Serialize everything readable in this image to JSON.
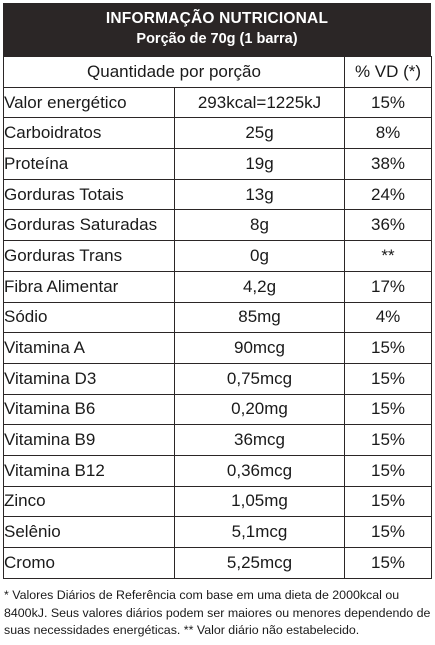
{
  "header": {
    "title": "INFORMAÇÃO NUTRICIONAL",
    "serving": "Porção de 70g (1 barra)"
  },
  "columns": {
    "quantity": "Quantidade por porção",
    "dv": "% VD (*)"
  },
  "rows": [
    {
      "name": "Valor energético",
      "amount": "293kcal=1225kJ",
      "dv": "15%"
    },
    {
      "name": "Carboidratos",
      "amount": "25g",
      "dv": "8%"
    },
    {
      "name": "Proteína",
      "amount": "19g",
      "dv": "38%"
    },
    {
      "name": "Gorduras Totais",
      "amount": "13g",
      "dv": "24%"
    },
    {
      "name": "Gorduras Saturadas",
      "amount": "8g",
      "dv": "36%"
    },
    {
      "name": "Gorduras Trans",
      "amount": "0g",
      "dv": "**"
    },
    {
      "name": "Fibra Alimentar",
      "amount": "4,2g",
      "dv": "17%"
    },
    {
      "name": "Sódio",
      "amount": "85mg",
      "dv": "4%"
    },
    {
      "name": "Vitamina A",
      "amount": "90mcg",
      "dv": "15%"
    },
    {
      "name": "Vitamina D3",
      "amount": "0,75mcg",
      "dv": "15%"
    },
    {
      "name": "Vitamina B6",
      "amount": "0,20mg",
      "dv": "15%"
    },
    {
      "name": "Vitamina B9",
      "amount": "36mcg",
      "dv": "15%"
    },
    {
      "name": "Vitamina B12",
      "amount": "0,36mcg",
      "dv": "15%"
    },
    {
      "name": "Zinco",
      "amount": "1,05mg",
      "dv": "15%"
    },
    {
      "name": "Selênio",
      "amount": "5,1mcg",
      "dv": "15%"
    },
    {
      "name": "Cromo",
      "amount": "5,25mcg",
      "dv": "15%"
    }
  ],
  "footnote": "* Valores Diários de Referência com base em uma dieta de 2000kcal ou 8400kJ. Seus valores diários podem ser maiores ou menores dependendo de suas necessidades energéticas. ** Valor diário não estabelecido.",
  "colors": {
    "header_bg": "#2b2626",
    "header_text": "#ffffff",
    "border": "#2b2626"
  }
}
